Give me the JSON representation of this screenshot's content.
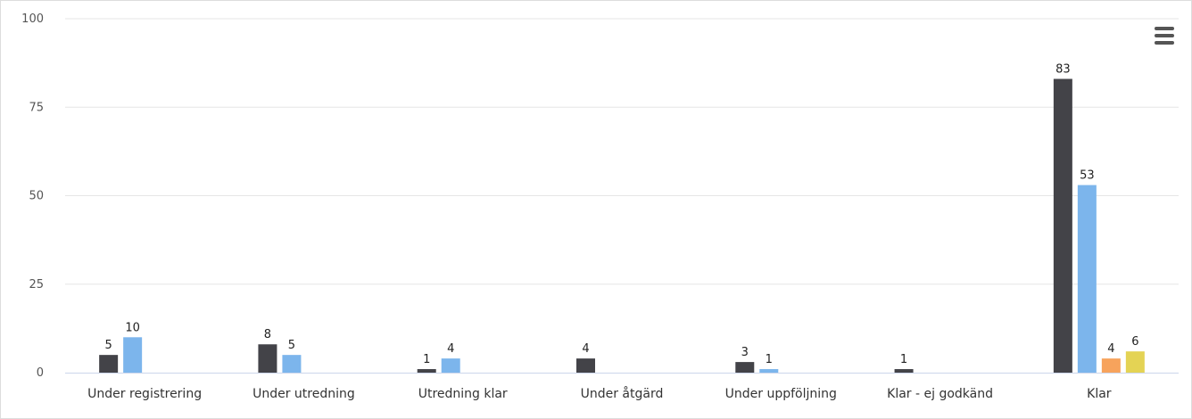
{
  "chart_data": {
    "type": "bar",
    "categories": [
      "Under registrering",
      "Under utredning",
      "Utredning klar",
      "Under åtgärd",
      "Under uppföljning",
      "Klar - ej godkänd",
      "Klar"
    ],
    "series": [
      {
        "color": "#434348",
        "values": [
          5,
          8,
          1,
          4,
          3,
          1,
          83
        ]
      },
      {
        "color": "#7cb5ec",
        "values": [
          10,
          5,
          4,
          null,
          1,
          null,
          53
        ]
      },
      {
        "color": "#f7a35c",
        "values": [
          null,
          null,
          null,
          null,
          null,
          null,
          4
        ]
      },
      {
        "color": "#e4d354",
        "values": [
          null,
          null,
          null,
          null,
          null,
          null,
          6
        ]
      }
    ],
    "yticks": [
      "0",
      "25",
      "50",
      "75",
      "100"
    ],
    "ylim": [
      0,
      100
    ],
    "grid": true,
    "legend": "none"
  },
  "menu": {
    "icon": "hamburger-menu-icon"
  }
}
